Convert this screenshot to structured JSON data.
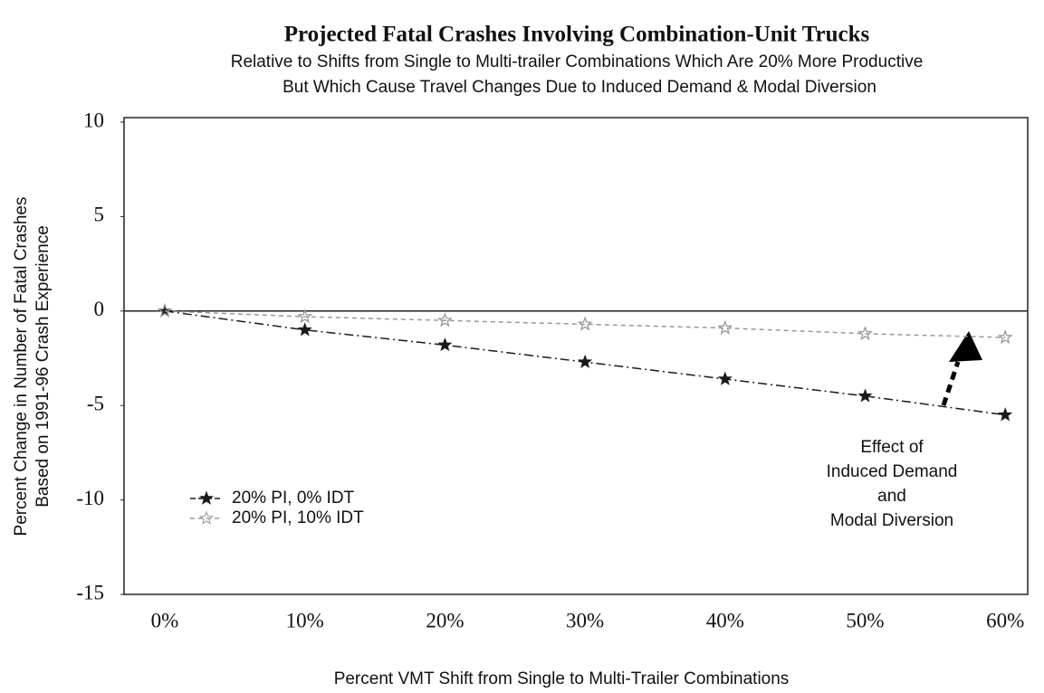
{
  "chart_data": {
    "type": "line",
    "title": "Projected Fatal Crashes Involving Combination-Unit Trucks",
    "subtitle": [
      "Relative to Shifts from Single to Multi-trailer Combinations Which Are 20% More Productive",
      "But Which Cause Travel Changes Due to Induced Demand & Modal Diversion"
    ],
    "x_label": "Percent VMT Shift from Single to Multi-Trailer Combinations",
    "y_label": [
      "Percent Change in Number of Fatal Crashes",
      "Based on 1991-96 Crash Experience"
    ],
    "categories": [
      "0%",
      "10%",
      "20%",
      "30%",
      "40%",
      "50%",
      "60%"
    ],
    "series": [
      {
        "name": "20% PI, 0% IDT",
        "color": "#1a1a1a",
        "values": [
          0,
          -1.0,
          -1.8,
          -2.7,
          -3.6,
          -4.5,
          -5.5
        ]
      },
      {
        "name": "20% PI, 10% IDT",
        "color": "#999999",
        "values": [
          0,
          -0.3,
          -0.5,
          -0.7,
          -0.9,
          -1.2,
          -1.4
        ]
      }
    ],
    "ylim": [
      -15,
      10
    ],
    "yticks": [
      -15,
      -10,
      -5,
      0,
      5,
      10
    ],
    "annotation": [
      "Effect of",
      "Induced Demand",
      "and",
      "Modal Diversion"
    ],
    "legend": "lower-left"
  }
}
